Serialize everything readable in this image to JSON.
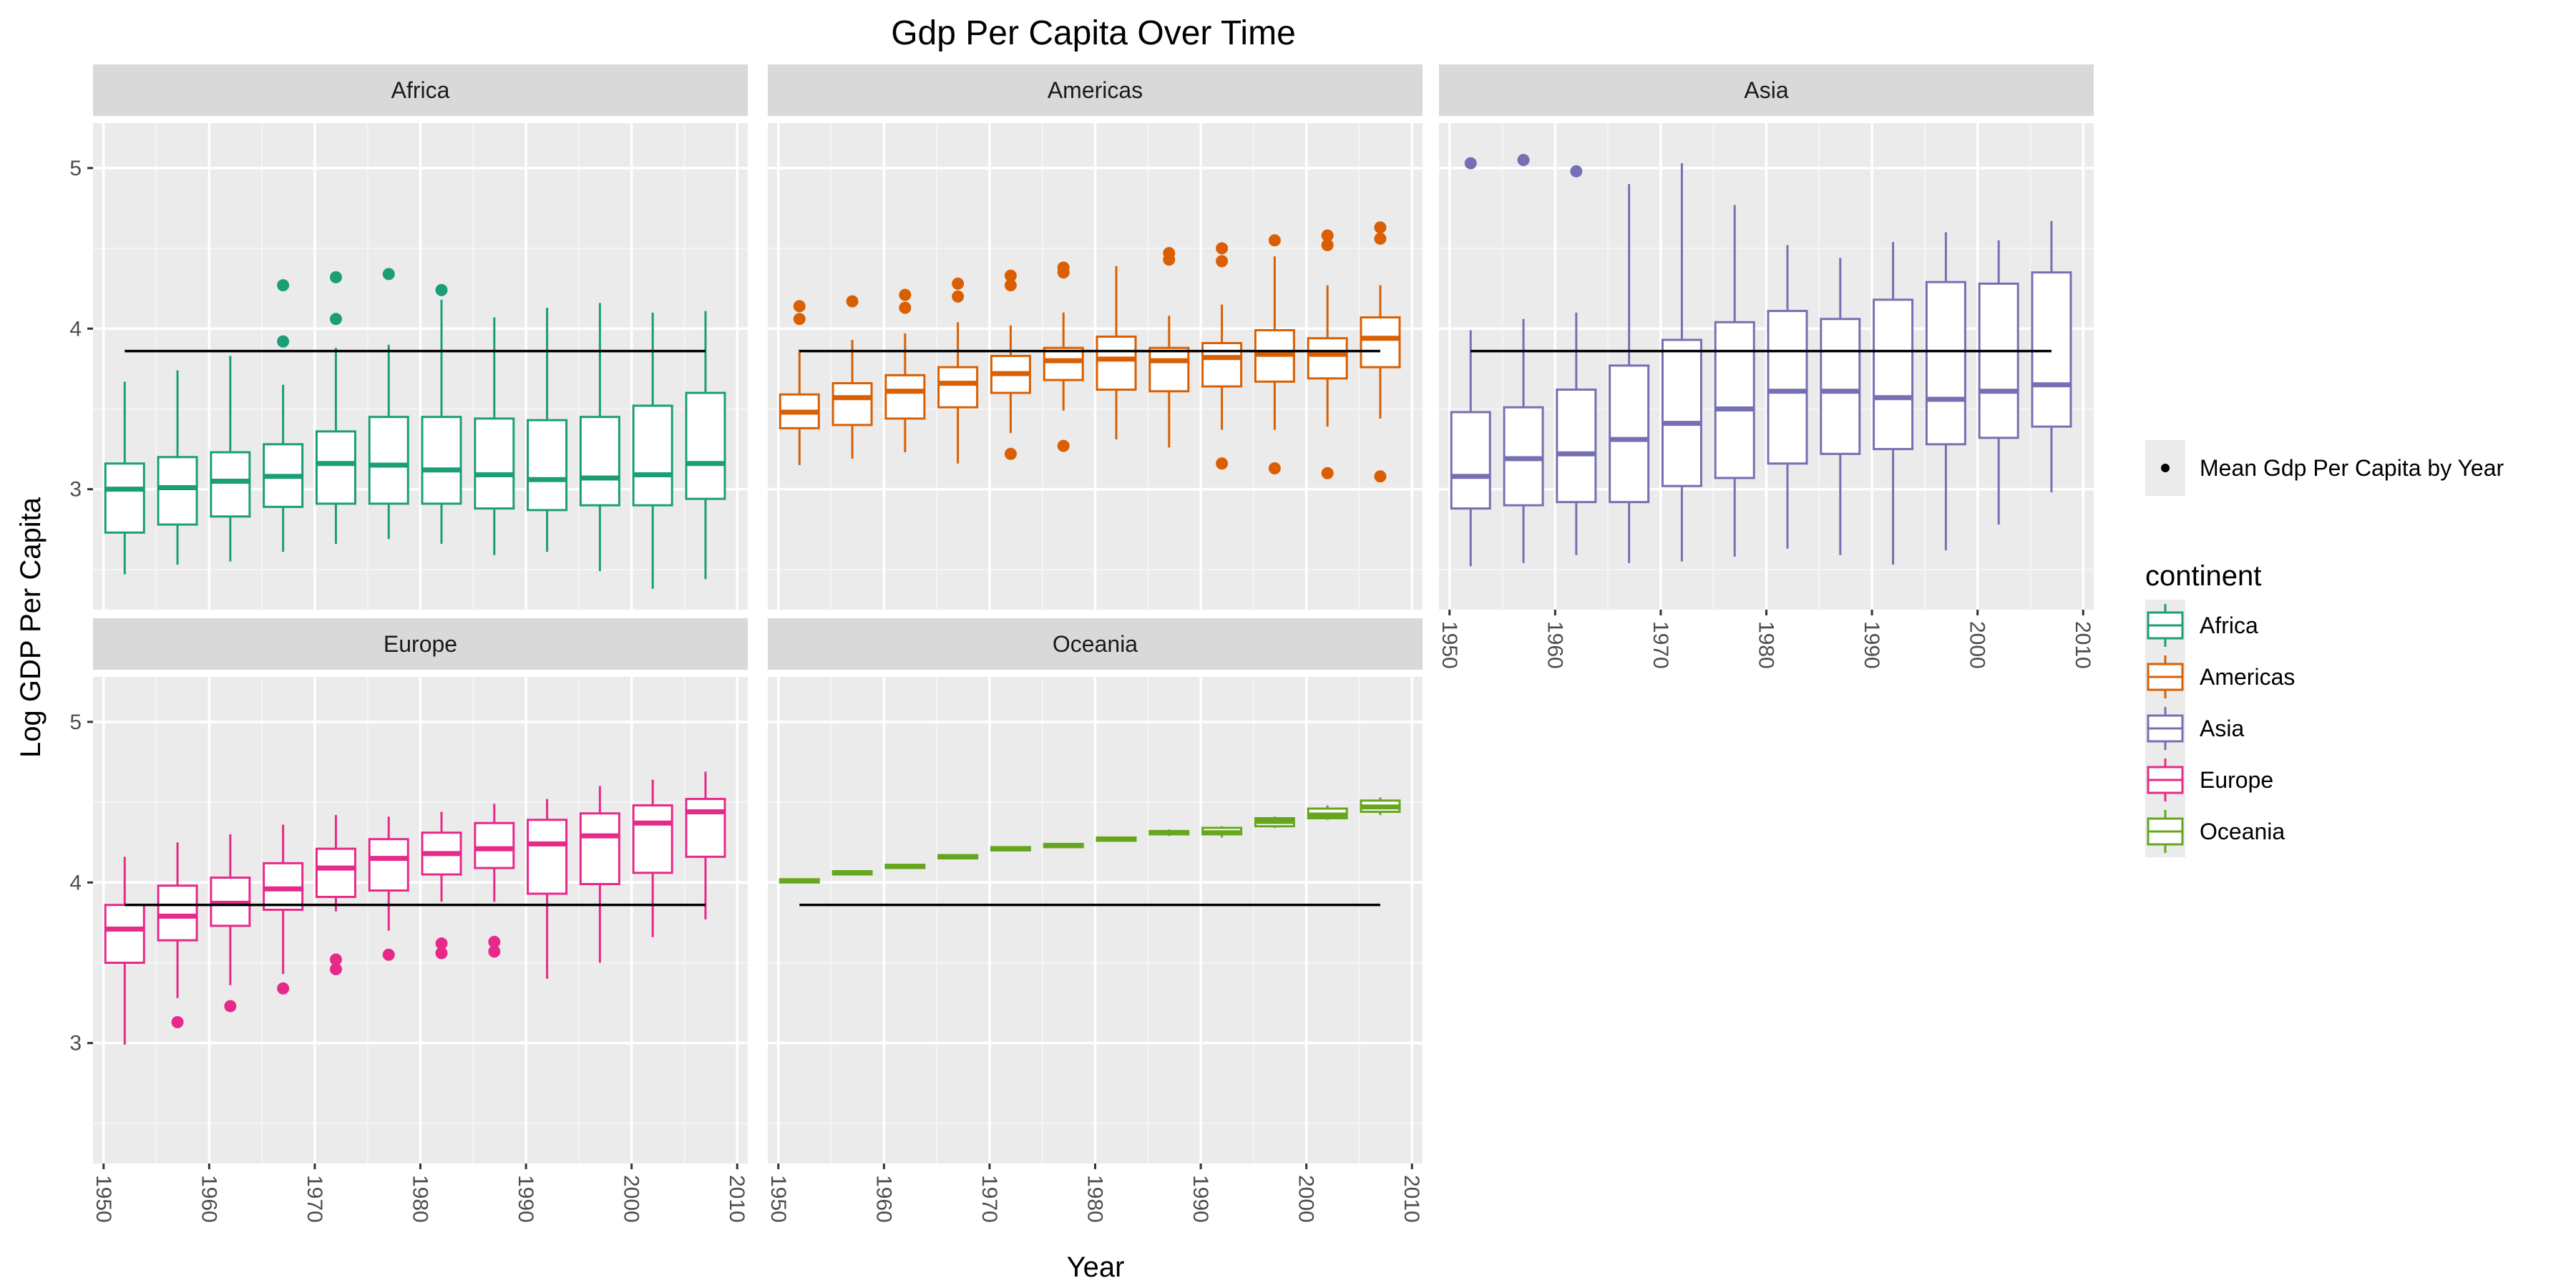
{
  "chart_data": {
    "type": "boxplot",
    "title": "Gdp Per Capita Over Time",
    "xlabel": "Year",
    "ylabel": "Log GDP Per Capita",
    "xlim": [
      1949,
      2011
    ],
    "ylim": [
      2.25,
      5.28
    ],
    "x_ticks": [
      1950,
      1960,
      1970,
      1980,
      1990,
      2000,
      2010
    ],
    "y_ticks": [
      3,
      4,
      5
    ],
    "facet_layout": {
      "cols": 3,
      "rows": 2
    },
    "grid": true,
    "legend_position": "right",
    "legend_title": "continent",
    "mean_legend_label": "Mean Gdp Per Capita by Year",
    "mean_line": {
      "value": 3.86,
      "x_start": 1952,
      "x_end": 2007,
      "color": "#000000"
    },
    "years": [
      1952,
      1957,
      1962,
      1967,
      1972,
      1977,
      1982,
      1987,
      1992,
      1997,
      2002,
      2007
    ],
    "panels": [
      {
        "name": "Africa",
        "color": "#1b9e77",
        "boxes": [
          {
            "q1": 2.73,
            "median": 3.0,
            "q3": 3.16,
            "lo": 2.47,
            "hi": 3.67,
            "outliers": []
          },
          {
            "q1": 2.78,
            "median": 3.01,
            "q3": 3.2,
            "lo": 2.53,
            "hi": 3.74,
            "outliers": []
          },
          {
            "q1": 2.83,
            "median": 3.05,
            "q3": 3.23,
            "lo": 2.55,
            "hi": 3.83,
            "outliers": []
          },
          {
            "q1": 2.89,
            "median": 3.08,
            "q3": 3.28,
            "lo": 2.61,
            "hi": 3.65,
            "outliers": [
              3.92,
              4.27
            ]
          },
          {
            "q1": 2.91,
            "median": 3.16,
            "q3": 3.36,
            "lo": 2.66,
            "hi": 3.88,
            "outliers": [
              4.06,
              4.32
            ]
          },
          {
            "q1": 2.91,
            "median": 3.15,
            "q3": 3.45,
            "lo": 2.69,
            "hi": 3.9,
            "outliers": [
              4.34
            ]
          },
          {
            "q1": 2.91,
            "median": 3.12,
            "q3": 3.45,
            "lo": 2.66,
            "hi": 4.18,
            "outliers": [
              4.24
            ]
          },
          {
            "q1": 2.88,
            "median": 3.09,
            "q3": 3.44,
            "lo": 2.59,
            "hi": 4.07,
            "outliers": []
          },
          {
            "q1": 2.87,
            "median": 3.06,
            "q3": 3.43,
            "lo": 2.61,
            "hi": 4.13,
            "outliers": []
          },
          {
            "q1": 2.9,
            "median": 3.07,
            "q3": 3.45,
            "lo": 2.49,
            "hi": 4.16,
            "outliers": []
          },
          {
            "q1": 2.9,
            "median": 3.09,
            "q3": 3.52,
            "lo": 2.38,
            "hi": 4.1,
            "outliers": []
          },
          {
            "q1": 2.94,
            "median": 3.16,
            "q3": 3.6,
            "lo": 2.44,
            "hi": 4.11,
            "outliers": []
          }
        ]
      },
      {
        "name": "Americas",
        "color": "#d95f02",
        "boxes": [
          {
            "q1": 3.38,
            "median": 3.48,
            "q3": 3.59,
            "lo": 3.15,
            "hi": 3.87,
            "outliers": [
              4.06,
              4.14
            ]
          },
          {
            "q1": 3.4,
            "median": 3.57,
            "q3": 3.66,
            "lo": 3.19,
            "hi": 3.93,
            "outliers": [
              4.17
            ]
          },
          {
            "q1": 3.44,
            "median": 3.61,
            "q3": 3.71,
            "lo": 3.23,
            "hi": 3.97,
            "outliers": [
              4.13,
              4.21
            ]
          },
          {
            "q1": 3.51,
            "median": 3.66,
            "q3": 3.76,
            "lo": 3.16,
            "hi": 4.04,
            "outliers": [
              4.2,
              4.28
            ]
          },
          {
            "q1": 3.6,
            "median": 3.72,
            "q3": 3.83,
            "lo": 3.35,
            "hi": 4.02,
            "outliers": [
              3.22,
              4.27,
              4.33
            ]
          },
          {
            "q1": 3.68,
            "median": 3.8,
            "q3": 3.88,
            "lo": 3.49,
            "hi": 4.1,
            "outliers": [
              3.27,
              4.35,
              4.38
            ]
          },
          {
            "q1": 3.62,
            "median": 3.81,
            "q3": 3.95,
            "lo": 3.31,
            "hi": 4.39,
            "outliers": []
          },
          {
            "q1": 3.61,
            "median": 3.8,
            "q3": 3.88,
            "lo": 3.26,
            "hi": 4.08,
            "outliers": [
              4.43,
              4.47
            ]
          },
          {
            "q1": 3.64,
            "median": 3.82,
            "q3": 3.91,
            "lo": 3.37,
            "hi": 4.15,
            "outliers": [
              3.16,
              4.42,
              4.5
            ]
          },
          {
            "q1": 3.67,
            "median": 3.84,
            "q3": 3.99,
            "lo": 3.37,
            "hi": 4.45,
            "outliers": [
              3.13,
              4.55
            ]
          },
          {
            "q1": 3.69,
            "median": 3.84,
            "q3": 3.94,
            "lo": 3.39,
            "hi": 4.27,
            "outliers": [
              3.1,
              4.52,
              4.58
            ]
          },
          {
            "q1": 3.76,
            "median": 3.94,
            "q3": 4.07,
            "lo": 3.44,
            "hi": 4.27,
            "outliers": [
              3.08,
              4.56,
              4.63
            ]
          }
        ]
      },
      {
        "name": "Asia",
        "color": "#7570b3",
        "boxes": [
          {
            "q1": 2.88,
            "median": 3.08,
            "q3": 3.48,
            "lo": 2.52,
            "hi": 3.99,
            "outliers": [
              5.03
            ]
          },
          {
            "q1": 2.9,
            "median": 3.19,
            "q3": 3.51,
            "lo": 2.54,
            "hi": 4.06,
            "outliers": [
              5.05
            ]
          },
          {
            "q1": 2.92,
            "median": 3.22,
            "q3": 3.62,
            "lo": 2.59,
            "hi": 4.1,
            "outliers": [
              4.98
            ]
          },
          {
            "q1": 2.92,
            "median": 3.31,
            "q3": 3.77,
            "lo": 2.54,
            "hi": 4.9,
            "outliers": []
          },
          {
            "q1": 3.02,
            "median": 3.41,
            "q3": 3.93,
            "lo": 2.55,
            "hi": 5.03,
            "outliers": []
          },
          {
            "q1": 3.07,
            "median": 3.5,
            "q3": 4.04,
            "lo": 2.58,
            "hi": 4.77,
            "outliers": []
          },
          {
            "q1": 3.16,
            "median": 3.61,
            "q3": 4.11,
            "lo": 2.63,
            "hi": 4.52,
            "outliers": []
          },
          {
            "q1": 3.22,
            "median": 3.61,
            "q3": 4.06,
            "lo": 2.59,
            "hi": 4.44,
            "outliers": []
          },
          {
            "q1": 3.25,
            "median": 3.57,
            "q3": 4.18,
            "lo": 2.53,
            "hi": 4.54,
            "outliers": []
          },
          {
            "q1": 3.28,
            "median": 3.56,
            "q3": 4.29,
            "lo": 2.62,
            "hi": 4.6,
            "outliers": []
          },
          {
            "q1": 3.32,
            "median": 3.61,
            "q3": 4.28,
            "lo": 2.78,
            "hi": 4.55,
            "outliers": []
          },
          {
            "q1": 3.39,
            "median": 3.65,
            "q3": 4.35,
            "lo": 2.98,
            "hi": 4.67,
            "outliers": []
          }
        ]
      },
      {
        "name": "Europe",
        "color": "#e7298a",
        "boxes": [
          {
            "q1": 3.5,
            "median": 3.71,
            "q3": 3.86,
            "lo": 2.99,
            "hi": 4.16,
            "outliers": []
          },
          {
            "q1": 3.64,
            "median": 3.79,
            "q3": 3.98,
            "lo": 3.28,
            "hi": 4.25,
            "outliers": [
              3.13
            ]
          },
          {
            "q1": 3.73,
            "median": 3.87,
            "q3": 4.03,
            "lo": 3.36,
            "hi": 4.3,
            "outliers": [
              3.23
            ]
          },
          {
            "q1": 3.83,
            "median": 3.96,
            "q3": 4.12,
            "lo": 3.43,
            "hi": 4.36,
            "outliers": [
              3.34
            ]
          },
          {
            "q1": 3.91,
            "median": 4.09,
            "q3": 4.21,
            "lo": 3.82,
            "hi": 4.42,
            "outliers": [
              3.46,
              3.52
            ]
          },
          {
            "q1": 3.95,
            "median": 4.15,
            "q3": 4.27,
            "lo": 3.7,
            "hi": 4.41,
            "outliers": [
              3.55
            ]
          },
          {
            "q1": 4.05,
            "median": 4.18,
            "q3": 4.31,
            "lo": 3.88,
            "hi": 4.44,
            "outliers": [
              3.56,
              3.62
            ]
          },
          {
            "q1": 4.09,
            "median": 4.21,
            "q3": 4.37,
            "lo": 3.88,
            "hi": 4.49,
            "outliers": [
              3.57,
              3.63
            ]
          },
          {
            "q1": 3.93,
            "median": 4.24,
            "q3": 4.39,
            "lo": 3.4,
            "hi": 4.52,
            "outliers": []
          },
          {
            "q1": 3.99,
            "median": 4.29,
            "q3": 4.43,
            "lo": 3.5,
            "hi": 4.6,
            "outliers": []
          },
          {
            "q1": 4.06,
            "median": 4.37,
            "q3": 4.48,
            "lo": 3.66,
            "hi": 4.64,
            "outliers": []
          },
          {
            "q1": 4.16,
            "median": 4.44,
            "q3": 4.52,
            "lo": 3.77,
            "hi": 4.69,
            "outliers": []
          }
        ]
      },
      {
        "name": "Oceania",
        "color": "#66a61e",
        "boxes": [
          {
            "q1": 4.0,
            "median": 4.01,
            "q3": 4.02,
            "lo": 4.0,
            "hi": 4.02,
            "outliers": []
          },
          {
            "q1": 4.05,
            "median": 4.06,
            "q3": 4.07,
            "lo": 4.05,
            "hi": 4.07,
            "outliers": []
          },
          {
            "q1": 4.09,
            "median": 4.1,
            "q3": 4.11,
            "lo": 4.09,
            "hi": 4.11,
            "outliers": []
          },
          {
            "q1": 4.15,
            "median": 4.16,
            "q3": 4.17,
            "lo": 4.15,
            "hi": 4.17,
            "outliers": []
          },
          {
            "q1": 4.2,
            "median": 4.21,
            "q3": 4.22,
            "lo": 4.2,
            "hi": 4.22,
            "outliers": []
          },
          {
            "q1": 4.22,
            "median": 4.23,
            "q3": 4.24,
            "lo": 4.22,
            "hi": 4.24,
            "outliers": []
          },
          {
            "q1": 4.26,
            "median": 4.27,
            "q3": 4.28,
            "lo": 4.26,
            "hi": 4.28,
            "outliers": []
          },
          {
            "q1": 4.3,
            "median": 4.31,
            "q3": 4.32,
            "lo": 4.29,
            "hi": 4.33,
            "outliers": []
          },
          {
            "q1": 4.3,
            "median": 4.31,
            "q3": 4.34,
            "lo": 4.28,
            "hi": 4.35,
            "outliers": []
          },
          {
            "q1": 4.35,
            "median": 4.38,
            "q3": 4.4,
            "lo": 4.34,
            "hi": 4.41,
            "outliers": []
          },
          {
            "q1": 4.4,
            "median": 4.42,
            "q3": 4.46,
            "lo": 4.39,
            "hi": 4.48,
            "outliers": []
          },
          {
            "q1": 4.44,
            "median": 4.47,
            "q3": 4.51,
            "lo": 4.42,
            "hi": 4.53,
            "outliers": []
          }
        ]
      }
    ]
  }
}
